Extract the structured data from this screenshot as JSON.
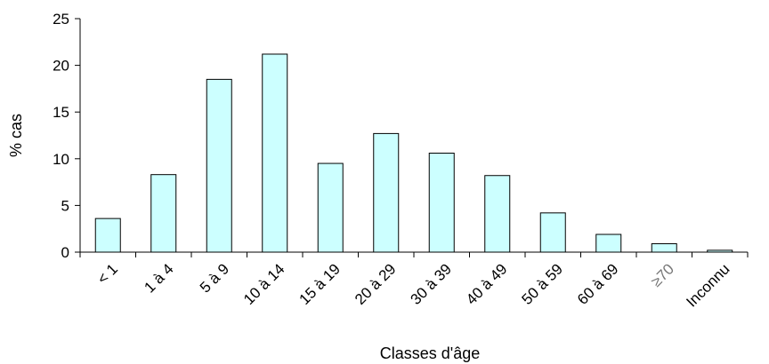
{
  "chart_data": {
    "type": "bar",
    "title": "",
    "xlabel": "Classes d'âge",
    "ylabel": "% cas",
    "ylim": [
      0,
      25
    ],
    "yticks": [
      0,
      5,
      10,
      15,
      20,
      25
    ],
    "grid": false,
    "categories": [
      "< 1",
      "1 à 4",
      "5 à 9",
      "10 à 14",
      "15 à 19",
      "20 à 29",
      "30 à 39",
      "40 à 49",
      "50 à 59",
      "60 à 69",
      "≥70",
      "Inconnu"
    ],
    "values": [
      3.6,
      8.3,
      18.5,
      21.2,
      9.5,
      12.7,
      10.6,
      8.2,
      4.2,
      1.9,
      0.9,
      0.2
    ],
    "bar_color": "#ccffff",
    "bar_edge_color": "#000000"
  }
}
